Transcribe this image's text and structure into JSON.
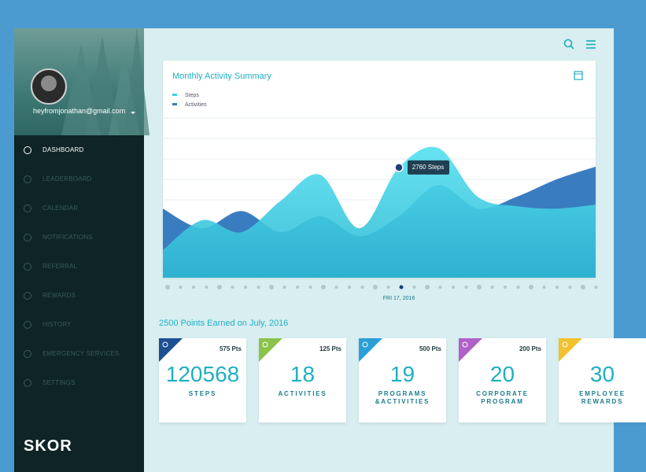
{
  "sidebar": {
    "email": "heyfromjonathan@gmail.com",
    "menu": [
      "DASHBOARD",
      "LEADERBOARD",
      "CALENDAR",
      "NOTIFICATIONS",
      "REFERRAL",
      "REWARDS",
      "HISTORY",
      "EMERGENCY SERVICES",
      "SETTINGS"
    ],
    "logo": "SKOR"
  },
  "chart_data": {
    "type": "area",
    "title": "Monthly Activity Summary",
    "series": [
      {
        "name": "Steps",
        "color": "#3fd2e7",
        "values": [
          690,
          1440,
          1140,
          1930,
          2580,
          1240,
          2760,
          3250,
          2030,
          1790,
          1730,
          1830
        ],
        "value_labels": [
          null,
          null,
          null,
          null,
          null,
          null,
          "2760 Steps",
          null,
          null,
          null,
          null,
          null
        ]
      },
      {
        "name": "Activities",
        "color": "#3a7cc0",
        "values": [
          1730,
          1240,
          1670,
          1140,
          1540,
          1040,
          1540,
          2320,
          1730,
          2030,
          2460,
          2780
        ]
      }
    ],
    "ylim": [
      0,
      4000
    ],
    "selected_date": "FRI 17, 2016"
  },
  "points_header": "2500 Points Earned on July, 2016",
  "cards": [
    {
      "points": "575 Pts",
      "value": 120568,
      "label": [
        "STEPS"
      ],
      "color": "#1d4f91"
    },
    {
      "points": "125 Pts",
      "value": 18,
      "label": [
        "ACTIVITIES"
      ],
      "color": "#8bc34a"
    },
    {
      "points": "500 Pts",
      "value": 19,
      "label": [
        "PROGRAMS",
        "&ACTIVITIES"
      ],
      "color": "#2a9fd8"
    },
    {
      "points": "200 Pts",
      "value": 20,
      "label": [
        "CORPORATE",
        "PROGRAM"
      ],
      "color": "#b160c8"
    },
    {
      "value": 30,
      "label": [
        "EMPLOYEE",
        "REWARDS"
      ],
      "color": "#f2c12e"
    }
  ]
}
